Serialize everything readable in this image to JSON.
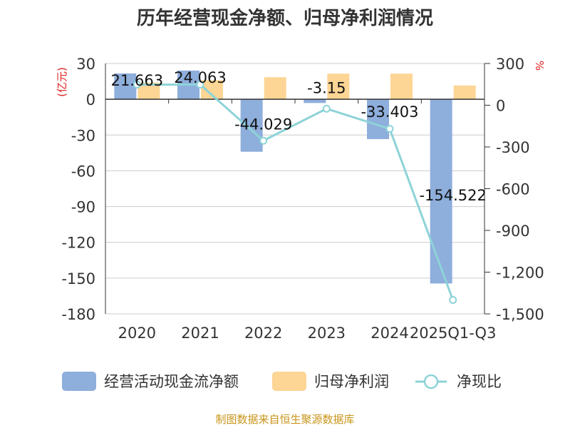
{
  "colors": {
    "cash_flow": "#8eaedc",
    "net_profit": "#fdd594",
    "ratio": "#8dd3d8",
    "ylabel_right": "#e02020",
    "ylabel_left": "#e02020",
    "source": "#c8951a",
    "title": "#333333"
  },
  "chart_data": {
    "type": "bar",
    "title": "历年经营现金净额、归母净利润情况",
    "ylabel": "(亿元)",
    "ylabel_right": "%",
    "categories": [
      "2020",
      "2021",
      "2022",
      "2023",
      "2024",
      "2025Q1-Q3"
    ],
    "y_ticks": [
      "30",
      "0",
      "-30",
      "-60",
      "-90",
      "-120",
      "-150",
      "-180"
    ],
    "y_ticks_values": [
      30,
      0,
      -30,
      -60,
      -90,
      -120,
      -150,
      -180
    ],
    "y_right_ticks": [
      "300",
      "0",
      "-300",
      "-600",
      "-900",
      "-1,200",
      "-1,500"
    ],
    "y_right_ticks_values": [
      300,
      0,
      -300,
      -600,
      -900,
      -1200,
      -1500
    ],
    "ylim": [
      -180,
      30
    ],
    "ylim_right": [
      -1500,
      300
    ],
    "series": [
      {
        "name": "经营活动现金流净额",
        "type": "bar",
        "axis": "left",
        "values": [
          21.663,
          24.063,
          -44.029,
          -3.15,
          -33.403,
          -154.522
        ]
      },
      {
        "name": "归母净利润",
        "type": "bar",
        "axis": "left",
        "values": [
          14,
          16,
          18.5,
          21.5,
          21.5,
          11.5
        ]
      },
      {
        "name": "净现比",
        "type": "line",
        "axis": "right",
        "values": [
          148,
          148,
          -255,
          -25,
          -170,
          -1400
        ]
      }
    ],
    "data_labels": [
      "21.663",
      "24.063",
      "-44.029",
      "-3.15",
      "-33.403",
      "-154.522"
    ]
  },
  "source_text": "制图数据来自恒生聚源数据库"
}
